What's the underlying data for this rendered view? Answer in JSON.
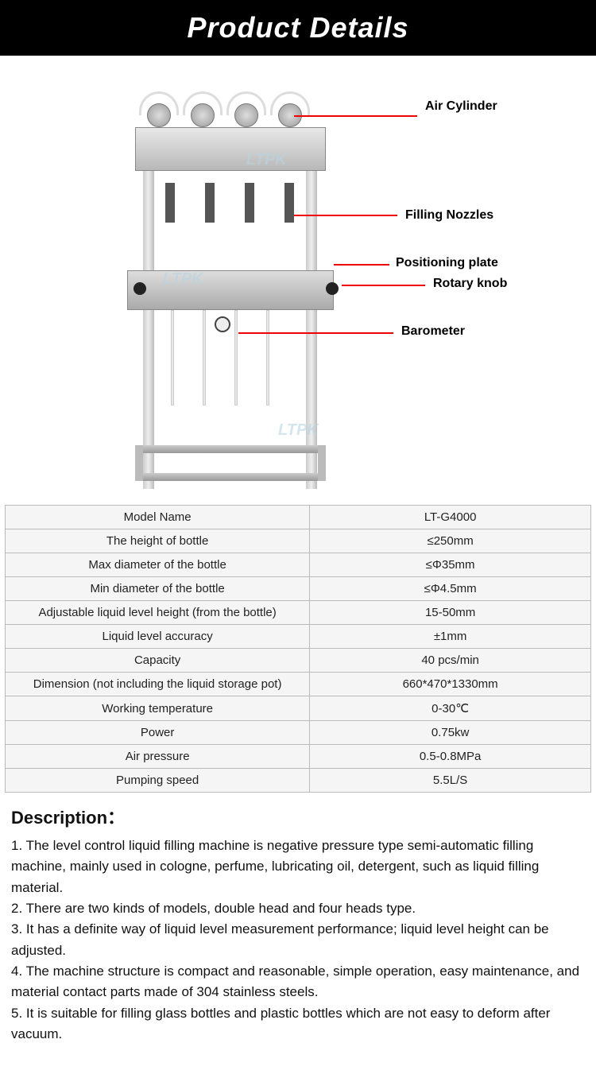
{
  "header": {
    "title": "Product Details"
  },
  "watermark": "LTPK",
  "callouts": {
    "air_cylinder": "Air Cylinder",
    "filling_nozzles": "Filling Nozzles",
    "positioning_plate": "Positioning plate",
    "rotary_knob": "Rotary knob",
    "barometer": "Barometer"
  },
  "specs": {
    "rows": [
      {
        "label": "Model Name",
        "value": "LT-G4000"
      },
      {
        "label": "The height of bottle",
        "value": "≤250mm"
      },
      {
        "label": "Max diameter of the bottle",
        "value": "≤Φ35mm"
      },
      {
        "label": "Min diameter of the bottle",
        "value": "≤Φ4.5mm"
      },
      {
        "label": "Adjustable liquid level height (from the bottle)",
        "value": "15-50mm"
      },
      {
        "label": "Liquid level accuracy",
        "value": "±1mm"
      },
      {
        "label": "Capacity",
        "value": "40 pcs/min"
      },
      {
        "label": "Dimension (not including the liquid storage pot)",
        "value": "660*470*1330mm"
      },
      {
        "label": "Working temperature",
        "value": "0-30℃"
      },
      {
        "label": "Power",
        "value": "0.75kw"
      },
      {
        "label": "Air pressure",
        "value": "0.5-0.8MPa"
      },
      {
        "label": "Pumping speed",
        "value": "5.5L/S"
      }
    ]
  },
  "description": {
    "title": "Description：",
    "lines": [
      "1. The level control liquid filling machine is negative pressure type semi-automatic filling machine, mainly used in cologne, perfume, lubricating oil, detergent, such as liquid filling material.",
      "2. There are two kinds of models, double head and four heads type.",
      "3. It has a definite way of liquid level measurement performance; liquid level height can be adjusted.",
      "4. The machine structure is compact and reasonable, simple operation, easy maintenance, and material contact parts made of 304 stainless steels.",
      "5. It is suitable for filling glass bottles and plastic bottles which are not easy to deform after vacuum."
    ]
  },
  "colors": {
    "callout_line": "#e00000",
    "header_bg": "#000000",
    "header_text": "#ffffff",
    "table_border": "#bbbbbb",
    "table_bg": "#f5f5f5"
  }
}
